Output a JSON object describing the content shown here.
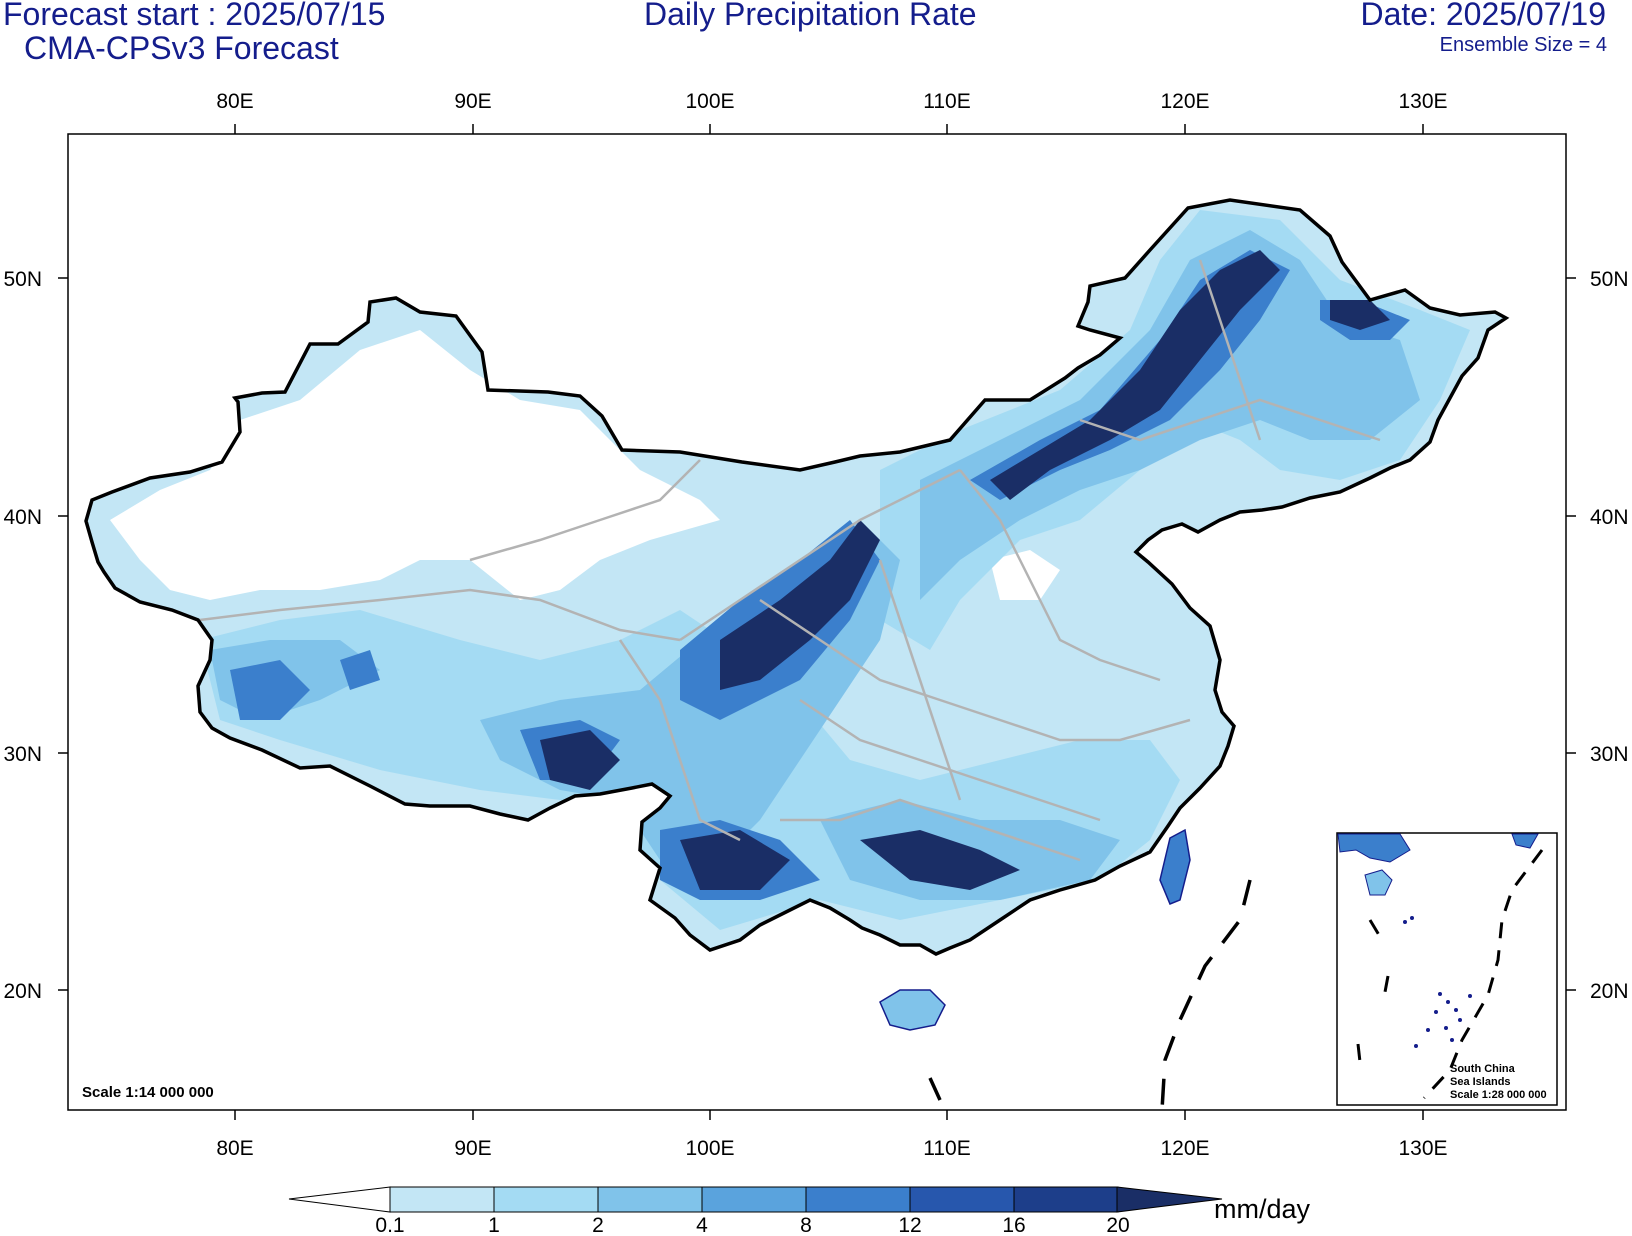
{
  "header": {
    "forecast_start": "Forecast start : 2025/07/15",
    "model": "CMA-CPSv3 Forecast",
    "title": "Daily Precipitation Rate",
    "date": "Date: 2025/07/19",
    "ensemble": "Ensemble Size = 4"
  },
  "map": {
    "lon_labels": [
      "80E",
      "90E",
      "100E",
      "110E",
      "120E",
      "130E"
    ],
    "lat_labels": [
      "50N",
      "40N",
      "30N",
      "20N"
    ],
    "scale_label": "Scale 1:14 000 000",
    "inset": {
      "line1": "South China",
      "line2": "Sea Islands",
      "line3": "Scale 1:28 000 000"
    }
  },
  "colorbar": {
    "unit": "mm/day",
    "levels": [
      "0.1",
      "1",
      "2",
      "4",
      "8",
      "12",
      "16",
      "20"
    ],
    "colors": [
      "#c3e6f5",
      "#a4dbf3",
      "#80c3ea",
      "#5aa3dd",
      "#3b7fcc",
      "#2757ad",
      "#1d3e8a",
      "#1a2e66"
    ]
  },
  "colors": {
    "title": "#141d8c",
    "coast": "#141d8c",
    "province": "#b3b3b3",
    "border": "#000000"
  }
}
